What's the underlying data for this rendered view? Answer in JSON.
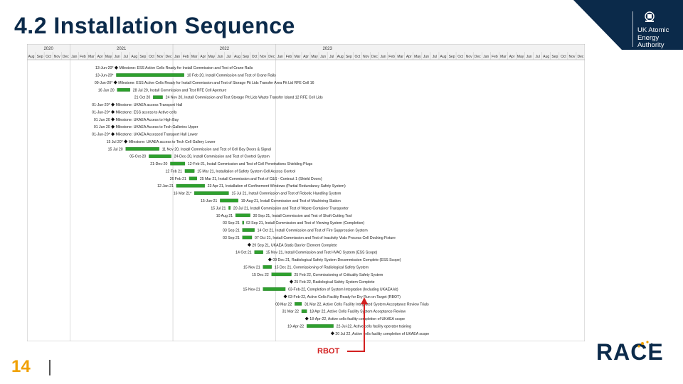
{
  "slide": {
    "title": "4.2 Installation Sequence",
    "page_number": "14",
    "annotation_label": "RBOT"
  },
  "logos": {
    "ukaea_lines": [
      "UK Atomic",
      "Energy",
      "Authority"
    ],
    "race": "RACE"
  },
  "colors": {
    "title": "#0b2a4a",
    "navy": "#0b2a4a",
    "bar_green": "#2ea02e",
    "annotation_red": "#d32020",
    "page_number": "#f0a000"
  },
  "gantt": {
    "years": [
      "2020",
      "2021",
      "2022",
      "2023"
    ],
    "months": [
      "Aug",
      "Sep",
      "Oct",
      "Nov",
      "Dec",
      "Jan",
      "Feb",
      "Mar",
      "Apr",
      "May",
      "Jun",
      "Jul",
      "Aug",
      "Sep",
      "Oct",
      "Nov",
      "Dec",
      "Jan",
      "Feb",
      "Mar",
      "Apr",
      "May",
      "Jun",
      "Jul",
      "Aug",
      "Sep",
      "Oct",
      "Nov",
      "Dec",
      "Jan",
      "Feb",
      "Mar",
      "Apr",
      "May",
      "Jun",
      "Jul",
      "Aug",
      "Sep",
      "Oct",
      "Nov",
      "Dec",
      "Jan",
      "Feb",
      "Mar",
      "Apr",
      "May",
      "Jun",
      "Jul",
      "Aug",
      "Sep",
      "Oct",
      "Nov",
      "Dec",
      "Jan",
      "Feb",
      "Mar",
      "Apr",
      "May",
      "Jun",
      "Jul",
      "Aug",
      "Sep",
      "Oct",
      "Nov",
      "Dec"
    ],
    "rows": [
      {
        "date": "13-Jun-20*",
        "label": "Milestone: ESS Active Cells Ready for Install Commission and Test of Crane Rails",
        "type": "milestone",
        "start": 10.4,
        "end": 10.4
      },
      {
        "date": "13-Jun-20*",
        "label": "10 Feb 20, Install Commission and Test of Crane Rails",
        "type": "bar",
        "start": 10.4,
        "end": 18.3
      },
      {
        "date": "09-Jun-20*",
        "label": "Milestone: ESS Active Cells Ready for Install Commission and Test of Storage Pit Lids Transfer Area Pit Lid RFE Cell 16",
        "type": "milestone",
        "start": 10.3,
        "end": 10.3
      },
      {
        "date": "16 Jun 20",
        "label": "28 Jul 20, Install Commission and Test RFE Cell Aperture",
        "type": "bar",
        "start": 10.5,
        "end": 12.0
      },
      {
        "date": "21 Oct 20",
        "label": "24 Nov 20, Install Commission and Test Storage Pit Lids Waste Transfer Island 12 RFE Cell Lids",
        "type": "bar",
        "start": 14.7,
        "end": 15.8
      },
      {
        "date": "01-Jun-20*",
        "label": "Milestone: UKAEA access Transport Hall",
        "type": "milestone",
        "start": 10.0,
        "end": 10.0
      },
      {
        "date": "01-Jun-20*",
        "label": "Milestone: ESS access to Active cells",
        "type": "milestone",
        "start": 10.0,
        "end": 10.0
      },
      {
        "date": "01 Jun 20",
        "label": "Milestone: UKAEA Access to High Bay",
        "type": "milestone",
        "start": 10.0,
        "end": 10.0
      },
      {
        "date": "01 Jun 20",
        "label": "Milestone: UKAEA Access to Tech Galleries Upper",
        "type": "milestone",
        "start": 10.0,
        "end": 10.0
      },
      {
        "date": "01-Jun-20*",
        "label": "Milestone: UKAEA Accessed Transport Hall Lower",
        "type": "milestone",
        "start": 10.0,
        "end": 10.0
      },
      {
        "date": "15 Jul 20*",
        "label": "Milestone: UKAEA access to Tech Cell Gallery Lower",
        "type": "milestone",
        "start": 11.5,
        "end": 11.5
      },
      {
        "date": "15 Jul 20",
        "label": "11 Nov 20, Install Commission and Test of Cell Bay Doors & Signal",
        "type": "bar",
        "start": 11.5,
        "end": 15.4
      },
      {
        "date": "05-Oct-20",
        "label": "24-Dec-20, Install Commission and Test of Control System",
        "type": "bar",
        "start": 14.2,
        "end": 16.8
      },
      {
        "date": "21-Dec-20",
        "label": "12-Feb-21, Install Commission and Test of Cell Penetrations Shielding Plugs",
        "type": "bar",
        "start": 16.7,
        "end": 18.4
      },
      {
        "date": "12 Feb 21",
        "label": "15 Mar 21, Installation of Safety System Cell Access Control",
        "type": "bar",
        "start": 18.4,
        "end": 19.5
      },
      {
        "date": "26 Feb 21",
        "label": "25 Mar 21, Install Commission and Test of C&S - Contract 1 (Shield Doors)",
        "type": "bar",
        "start": 18.9,
        "end": 19.8
      },
      {
        "date": "12 Jan 21",
        "label": "23 Apr 21, Installation of Confinement Windows (Partial Redundancy Safety System)",
        "type": "bar",
        "start": 17.4,
        "end": 20.7
      },
      {
        "date": "16 Mar 21*",
        "label": "15 Jul 21, Install Commission and Test of Robotic Handling System",
        "type": "bar",
        "start": 19.5,
        "end": 23.5
      },
      {
        "date": "15-Jun-21",
        "label": "19-Aug-21, Install Commission and Test of Machining Station",
        "type": "bar",
        "start": 22.5,
        "end": 24.6
      },
      {
        "date": "15 Jul 21",
        "label": "20 Jul 21, Install Commission and Test of Waste Container Transporter",
        "type": "bar",
        "start": 23.5,
        "end": 23.7
      },
      {
        "date": "10 Aug 21",
        "label": "30 Sep 21, Install Commission and Test of Shaft Cutting Tool",
        "type": "bar",
        "start": 24.3,
        "end": 26.0
      },
      {
        "date": "03 Sep 21",
        "label": "03 Sep 21, Install Commission and Test of Viewing System (Completion)",
        "type": "bar",
        "start": 25.1,
        "end": 25.2
      },
      {
        "date": "03 Sep 21",
        "label": "14 Oct 21, Install Commission and Test of Fire Suppression System",
        "type": "bar",
        "start": 25.1,
        "end": 26.5
      },
      {
        "date": "03 Sep 21",
        "label": "07 Oct 21, Install Commission and Test of Inactivity Vials Process Cell Docking Fixture",
        "type": "bar",
        "start": 25.1,
        "end": 26.2
      },
      {
        "date": "",
        "label": "29 Sep 21, UKAEA Static Barrier Element Complete",
        "type": "milestone",
        "start": 25.9,
        "end": 25.9
      },
      {
        "date": "14 Oct 21",
        "label": "15 Nov 21, Install Commission and Test HVAC System (ESS Scope)",
        "type": "bar",
        "start": 26.5,
        "end": 27.5
      },
      {
        "date": "",
        "label": "09 Dec 21, Radiological Safety System Decommission Complete (ESS Scope)",
        "type": "milestone",
        "start": 28.3,
        "end": 28.3
      },
      {
        "date": "15 Nov 21",
        "label": "15 Dec 21, Commissioning of Radiological Safety System",
        "type": "bar",
        "start": 27.5,
        "end": 28.5
      },
      {
        "date": "15 Dec 22",
        "label": "25 Feb 22, Commissioning of Criticality Safety System",
        "type": "bar",
        "start": 28.5,
        "end": 30.8
      },
      {
        "date": "",
        "label": "25 Feb 22, Radiological Safety System Complete",
        "type": "milestone",
        "start": 30.8,
        "end": 30.8
      },
      {
        "date": "15-Nov-21",
        "label": "03-Feb-22, Completion of System Integration (Including UKAEA kit)",
        "type": "bar",
        "start": 27.5,
        "end": 30.1
      },
      {
        "date": "",
        "label": "03-Feb-22, Active Cells Facility Ready for Dry Run on Target (RBOT)",
        "type": "milestone",
        "start": 30.1,
        "end": 30.1
      },
      {
        "date": "08 Mar 22",
        "label": "31 Mar 22, Active Cells Facility Integrated System Acceptance Review Trials",
        "type": "bar",
        "start": 31.2,
        "end": 32.0
      },
      {
        "date": "31 Mar 22",
        "label": "18 Apr 22, Active Cells Facility System Acceptance Review",
        "type": "bar",
        "start": 32.0,
        "end": 32.6
      },
      {
        "date": "",
        "label": "18-Apr-22, Active cells facility completion of UKAEA scope",
        "type": "milestone",
        "start": 32.6,
        "end": 32.6
      },
      {
        "date": "19-Apr-22",
        "label": "22-Jul-22, Active cells facility operator training",
        "type": "bar",
        "start": 32.6,
        "end": 35.7
      },
      {
        "date": "",
        "label": "20 Jul 22, Active cells facility completion of UKAEA scope",
        "type": "milestone",
        "start": 35.6,
        "end": 35.6
      }
    ]
  }
}
